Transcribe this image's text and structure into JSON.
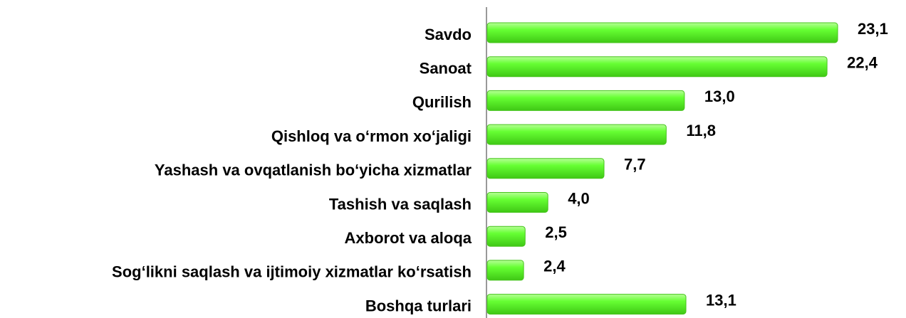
{
  "chart_data": {
    "type": "bar",
    "orientation": "horizontal",
    "categories": [
      "Savdo",
      "Sanoat",
      "Qurilish",
      "Qishloq va o‘rmon xo‘jaligi",
      "Yashash va ovqatlanish bo‘yicha xizmatlar",
      "Tashish va saqlash",
      "Axborot va aloqa",
      "Sog‘likni saqlash va ijtimoiy xizmatlar ko‘rsatish",
      "Boshqa turlari"
    ],
    "values": [
      23.1,
      22.4,
      13.0,
      11.8,
      7.7,
      4.0,
      2.5,
      2.4,
      13.1
    ],
    "value_labels": [
      "23,1",
      "22,4",
      "13,0",
      "11,8",
      "7,7",
      "4,0",
      "2,5",
      "2,4",
      "13,1"
    ],
    "color": "#66ff33"
  }
}
